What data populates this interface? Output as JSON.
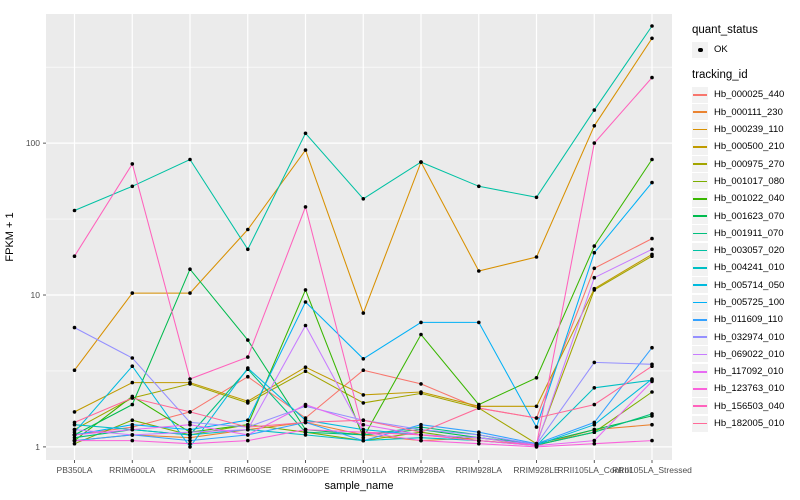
{
  "chart_data": {
    "type": "line",
    "title": "",
    "xlabel": "sample_name",
    "ylabel": "FPKM + 1",
    "y_scale": "log10",
    "ylim": [
      0.82,
      708
    ],
    "y_ticks": [
      1,
      10,
      100
    ],
    "y_minor_ticks": [
      3.162,
      31.62,
      316.23
    ],
    "grid": "white major+minor on gray panel",
    "legend_position": "right",
    "categories": [
      "PB350LA",
      "RRIM600LA",
      "RRIM600LE",
      "RRIM600SE",
      "RRIM600PE",
      "RRIM901LA",
      "RRIM928BA",
      "RRIM928LA",
      "RRIM928LE",
      "RRII105LA_Control",
      "RRII105LA_Stressed"
    ],
    "series": [
      {
        "name": "Hb_000025_440",
        "color": "#F8766D",
        "values": [
          1.2,
          1.35,
          1.7,
          2.9,
          1.55,
          3.2,
          2.6,
          1.8,
          1.55,
          15,
          23.5
        ]
      },
      {
        "name": "Hb_000111_230",
        "color": "#EA8331",
        "values": [
          1.1,
          1.2,
          1.15,
          1.3,
          1.45,
          1.2,
          1.1,
          1.15,
          1.02,
          1.3,
          1.4
        ]
      },
      {
        "name": "Hb_000239_110",
        "color": "#D89000",
        "values": [
          3.2,
          10.3,
          10.3,
          27,
          90,
          7.6,
          75,
          14.4,
          17.8,
          130,
          490
        ]
      },
      {
        "name": "Hb_000500_210",
        "color": "#C09B00",
        "values": [
          1.7,
          2.65,
          2.65,
          2.0,
          3.35,
          2.2,
          2.3,
          1.85,
          1.85,
          11,
          18.5
        ]
      },
      {
        "name": "Hb_000975_270",
        "color": "#A3A500",
        "values": [
          1.3,
          2.1,
          2.6,
          1.95,
          3.15,
          1.95,
          2.25,
          1.8,
          1.05,
          10.8,
          18
        ]
      },
      {
        "name": "Hb_001017_080",
        "color": "#7CAE00",
        "values": [
          1.05,
          1.5,
          1.2,
          1.4,
          1.25,
          1.1,
          1.25,
          1.1,
          1.03,
          1.25,
          2.3
        ]
      },
      {
        "name": "Hb_001022_040",
        "color": "#39B600",
        "values": [
          1.1,
          2.15,
          1.25,
          1.4,
          10.8,
          1.15,
          5.5,
          1.9,
          2.85,
          21,
          78
        ]
      },
      {
        "name": "Hb_001623_070",
        "color": "#00BB4E",
        "values": [
          1.2,
          1.9,
          14.8,
          5.05,
          1.3,
          1.2,
          1.3,
          1.15,
          1.05,
          1.3,
          1.6
        ]
      },
      {
        "name": "Hb_001911_070",
        "color": "#00BF7D",
        "values": [
          1.15,
          1.3,
          1.2,
          3.25,
          1.25,
          1.2,
          1.35,
          1.2,
          1.03,
          1.25,
          1.65
        ]
      },
      {
        "name": "Hb_003057_020",
        "color": "#00C1A3",
        "values": [
          36,
          52,
          78,
          20,
          116,
          43,
          75,
          52,
          44,
          165,
          590
        ]
      },
      {
        "name": "Hb_004241_010",
        "color": "#00BFC4",
        "values": [
          1.4,
          1.3,
          1.2,
          1.3,
          1.2,
          1.1,
          1.15,
          1.1,
          1.02,
          2.45,
          2.75
        ]
      },
      {
        "name": "Hb_005714_050",
        "color": "#00BADE",
        "values": [
          1.25,
          3.4,
          1.0,
          3.3,
          1.5,
          1.3,
          1.2,
          1.15,
          1.03,
          1.4,
          2.8
        ]
      },
      {
        "name": "Hb_005725_100",
        "color": "#00B0F6",
        "values": [
          1.2,
          1.4,
          1.3,
          1.5,
          9.0,
          3.8,
          6.6,
          6.6,
          1.35,
          19,
          55
        ]
      },
      {
        "name": "Hb_011609_110",
        "color": "#35A2FF",
        "values": [
          1.1,
          1.2,
          1.1,
          1.2,
          1.45,
          1.1,
          1.4,
          1.25,
          1.05,
          1.45,
          4.5
        ]
      },
      {
        "name": "Hb_032974_010",
        "color": "#9590FF",
        "values": [
          6.1,
          3.85,
          1.45,
          1.35,
          1.85,
          1.5,
          1.3,
          1.2,
          1.04,
          3.6,
          3.5
        ]
      },
      {
        "name": "Hb_069022_010",
        "color": "#C77CFF",
        "values": [
          1.3,
          1.2,
          1.25,
          1.3,
          6.3,
          1.25,
          1.2,
          1.15,
          1.03,
          13,
          20
        ]
      },
      {
        "name": "Hb_117092_010",
        "color": "#E76BF3",
        "values": [
          1.2,
          1.3,
          1.4,
          1.2,
          1.9,
          1.4,
          1.2,
          1.1,
          1.02,
          1.1,
          2.7
        ]
      },
      {
        "name": "Hb_123763_010",
        "color": "#FA62DB",
        "values": [
          1.1,
          1.1,
          1.05,
          1.1,
          1.3,
          1.25,
          1.1,
          1.05,
          1.0,
          1.05,
          1.1
        ]
      },
      {
        "name": "Hb_156503_040",
        "color": "#FF62BC",
        "values": [
          18,
          73,
          2.8,
          3.9,
          38,
          1.25,
          1.2,
          1.1,
          1.03,
          100,
          270
        ]
      },
      {
        "name": "Hb_182005_010",
        "color": "#FF6A98",
        "values": [
          1.45,
          2.1,
          1.7,
          1.35,
          1.45,
          1.5,
          1.25,
          1.8,
          1.55,
          1.9,
          3.4
        ]
      }
    ],
    "legend": {
      "quant_title": "quant_status",
      "quant_items": [
        {
          "label": "OK",
          "marker": "point",
          "color": "#000000"
        }
      ],
      "series_title": "tracking_id"
    },
    "style": {
      "panel_bg": "#EBEBEB",
      "grid_color": "#FFFFFF",
      "point_color": "#000000",
      "tick_color": "#333333",
      "tick_label_color": "#4D4D4D",
      "axis_title_color": "#000000",
      "legend_key_bg": "#F2F2F2",
      "background": "#FFFFFF"
    }
  }
}
